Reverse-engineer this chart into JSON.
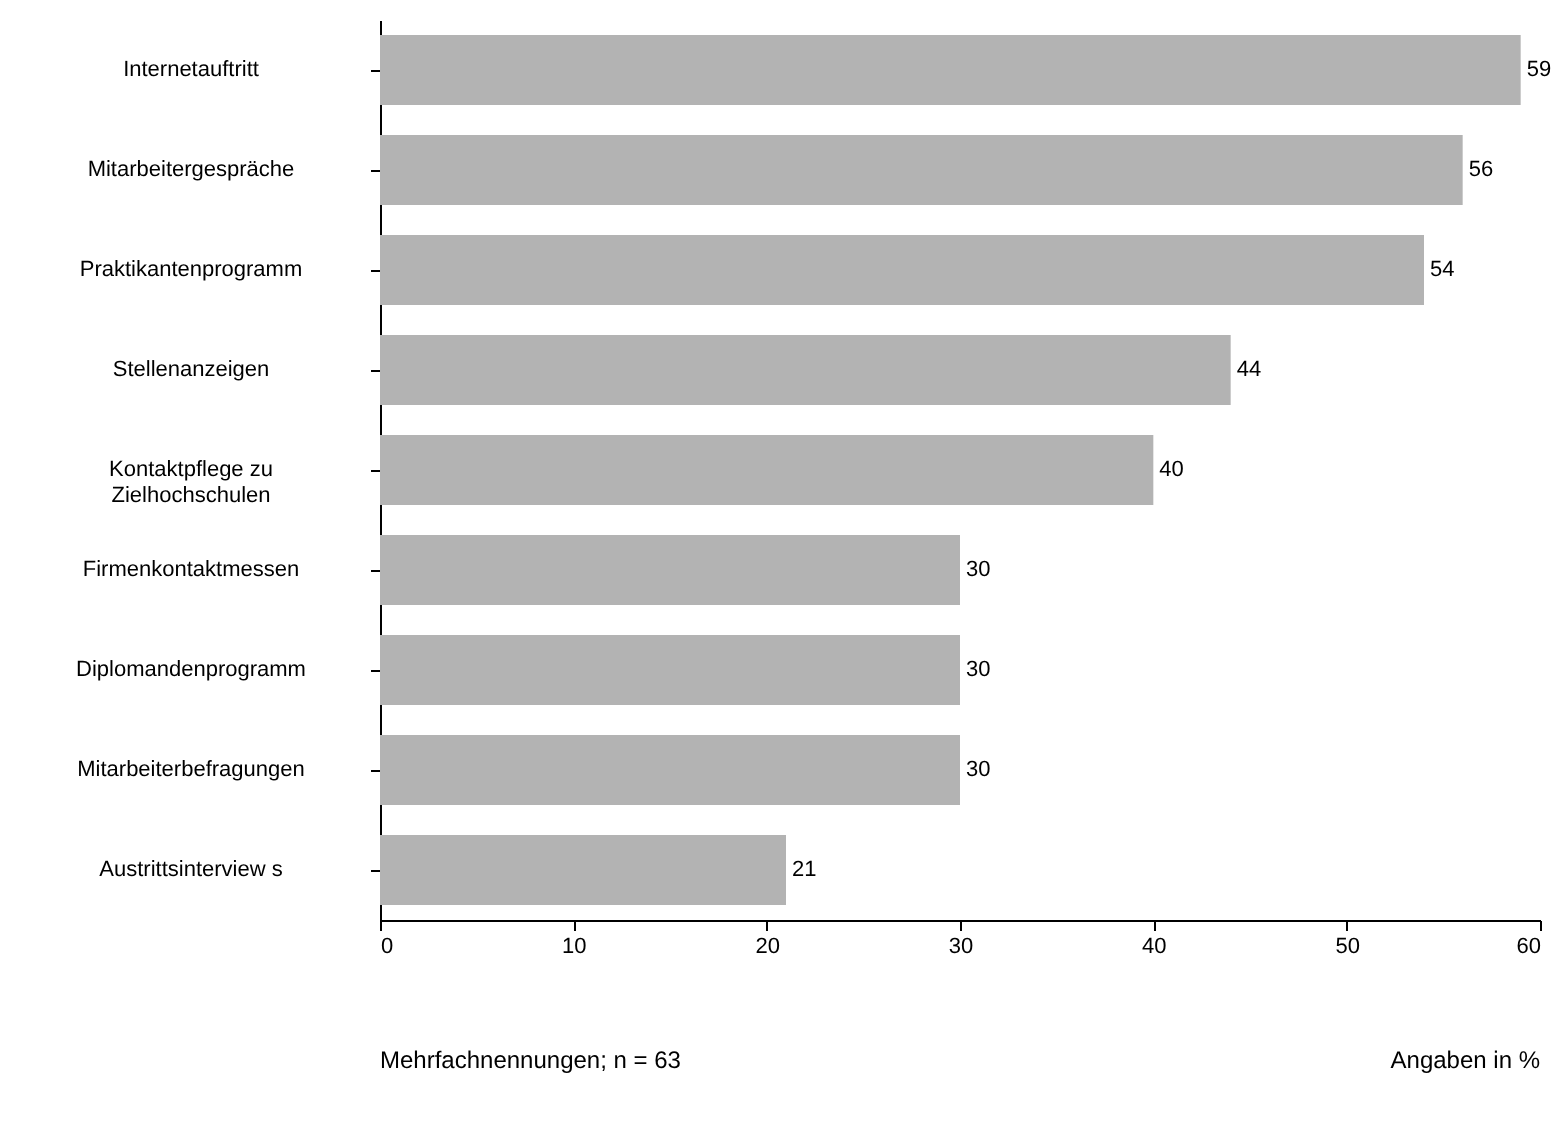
{
  "chart_data": {
    "type": "bar",
    "orientation": "horizontal",
    "categories": [
      "Internetauftritt",
      "Mitarbeitergespräche",
      "Praktikantenprogramm",
      "Stellenanzeigen",
      "Kontaktpflege zu\nZielhochschulen",
      "Firmenkontaktmessen",
      "Diplomandenprogramm",
      "Mitarbeiterbefragungen",
      "Austrittsinterview s"
    ],
    "values": [
      59,
      56,
      54,
      44,
      40,
      30,
      30,
      30,
      21
    ],
    "color": "#b3b3b3",
    "xlim": [
      0,
      60
    ],
    "xticks": [
      0,
      10,
      20,
      30,
      40,
      50,
      60
    ],
    "data_labels": true,
    "annotations": [
      "Mehrfachnennungen; n = 63",
      "Angaben in %"
    ]
  }
}
